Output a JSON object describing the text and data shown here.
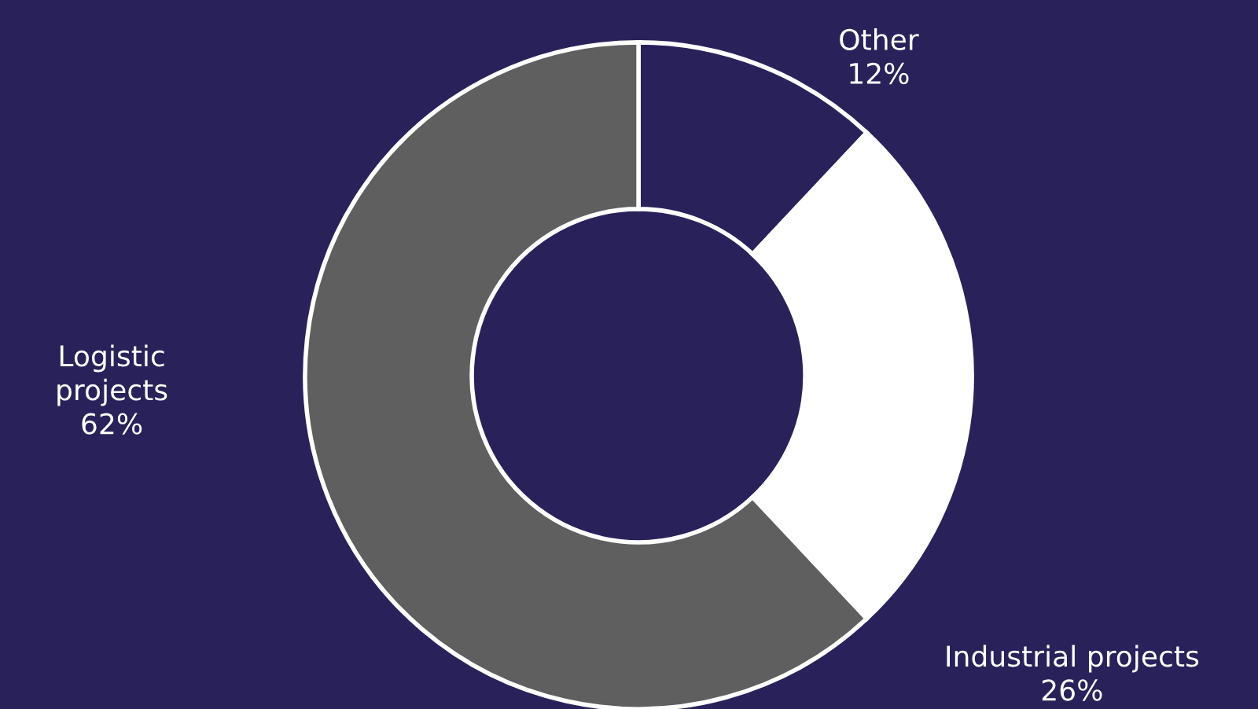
{
  "chart_data": {
    "type": "donut",
    "categories": [
      "Other",
      "Industrial projects",
      "Logistic projects"
    ],
    "values": [
      12,
      26,
      62
    ],
    "colors": [
      "#29225a",
      "#ffffff",
      "#5f5f5f"
    ],
    "value_labels": [
      "12%",
      "26%",
      "62%"
    ]
  }
}
